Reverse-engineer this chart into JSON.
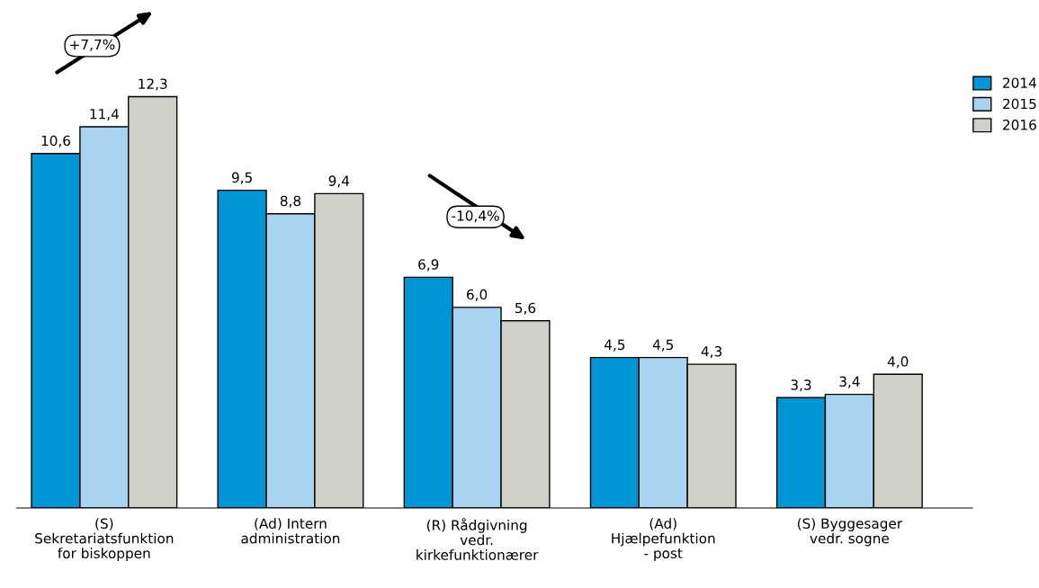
{
  "chart_data": {
    "type": "bar",
    "categories": [
      "(S)\nSekretariatsfunktion\nfor biskoppen",
      "(Ad) Intern\nadministration",
      "(R) Rådgivning\nvedr.\nkirkefunktionærer",
      "(Ad)\nHjælpefunktion\n- post",
      "(S) Byggesager\nvedr. sogne"
    ],
    "series": [
      {
        "name": "2014",
        "color": "#0096d6",
        "values": [
          10.6,
          9.5,
          6.9,
          4.5,
          3.3
        ],
        "value_labels": [
          "10,6",
          "9,5",
          "6,9",
          "4,5",
          "3,3"
        ]
      },
      {
        "name": "2015",
        "color": "#a8d4f2",
        "values": [
          11.4,
          8.8,
          6.0,
          4.5,
          3.4
        ],
        "value_labels": [
          "11,4",
          "8,8",
          "6,0",
          "4,5",
          "3,4"
        ]
      },
      {
        "name": "2016",
        "color": "#d0d0c8",
        "values": [
          12.3,
          9.4,
          5.6,
          4.3,
          4.0
        ],
        "value_labels": [
          "12,3",
          "9,4",
          "5,6",
          "4,3",
          "4,0"
        ]
      }
    ],
    "annotations": [
      "+7,7%",
      "-10,4%"
    ],
    "legend": "right",
    "grid": false
  }
}
